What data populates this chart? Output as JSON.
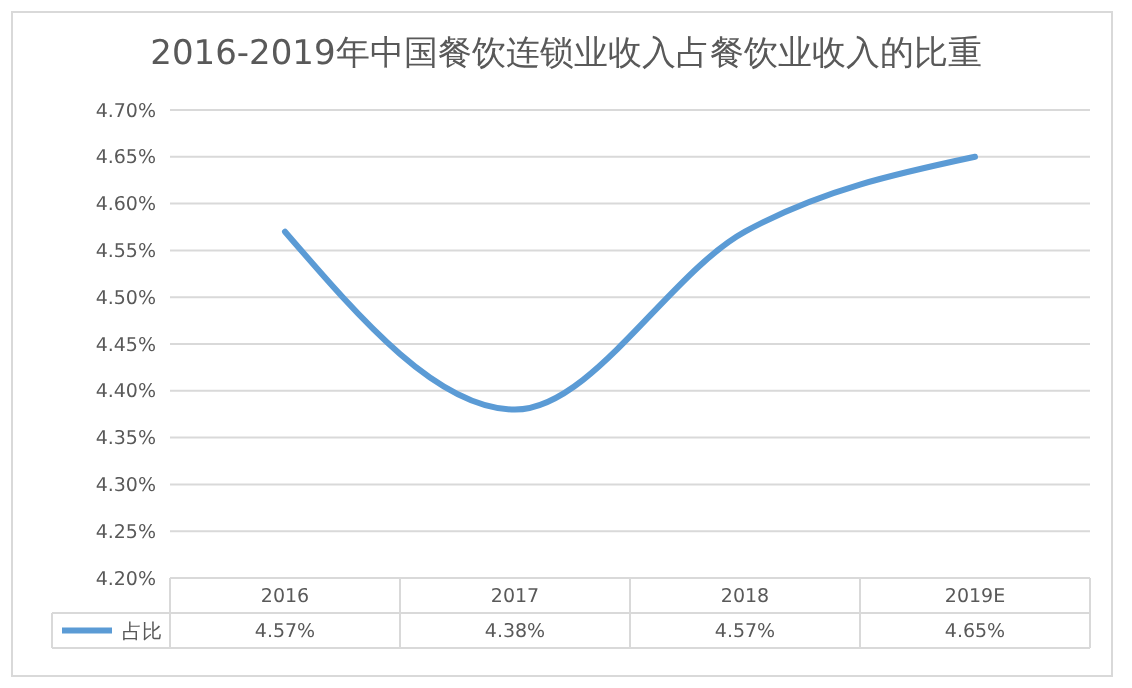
{
  "chart_data": {
    "type": "line",
    "title": "2016-2019年中国餐饮连锁业收入占餐饮业收入的比重",
    "categories": [
      "2016",
      "2017",
      "2018",
      "2019E"
    ],
    "series": [
      {
        "name": "占比",
        "color": "#5b9bd5",
        "values": [
          4.57,
          4.38,
          4.57,
          4.65
        ],
        "value_labels": [
          "4.57%",
          "4.38%",
          "4.57%",
          "4.65%"
        ]
      }
    ],
    "ylim": [
      4.2,
      4.7
    ],
    "yticks": [
      {
        "value": 4.2,
        "label": "4.20%"
      },
      {
        "value": 4.25,
        "label": "4.25%"
      },
      {
        "value": 4.3,
        "label": "4.30%"
      },
      {
        "value": 4.35,
        "label": "4.35%"
      },
      {
        "value": 4.4,
        "label": "4.40%"
      },
      {
        "value": 4.45,
        "label": "4.45%"
      },
      {
        "value": 4.5,
        "label": "4.50%"
      },
      {
        "value": 4.55,
        "label": "4.55%"
      },
      {
        "value": 4.6,
        "label": "4.60%"
      },
      {
        "value": 4.65,
        "label": "4.65%"
      },
      {
        "value": 4.7,
        "label": "4.70%"
      }
    ],
    "grid": "y",
    "legend": "bottom",
    "marker": "none",
    "line_style": "solid"
  }
}
